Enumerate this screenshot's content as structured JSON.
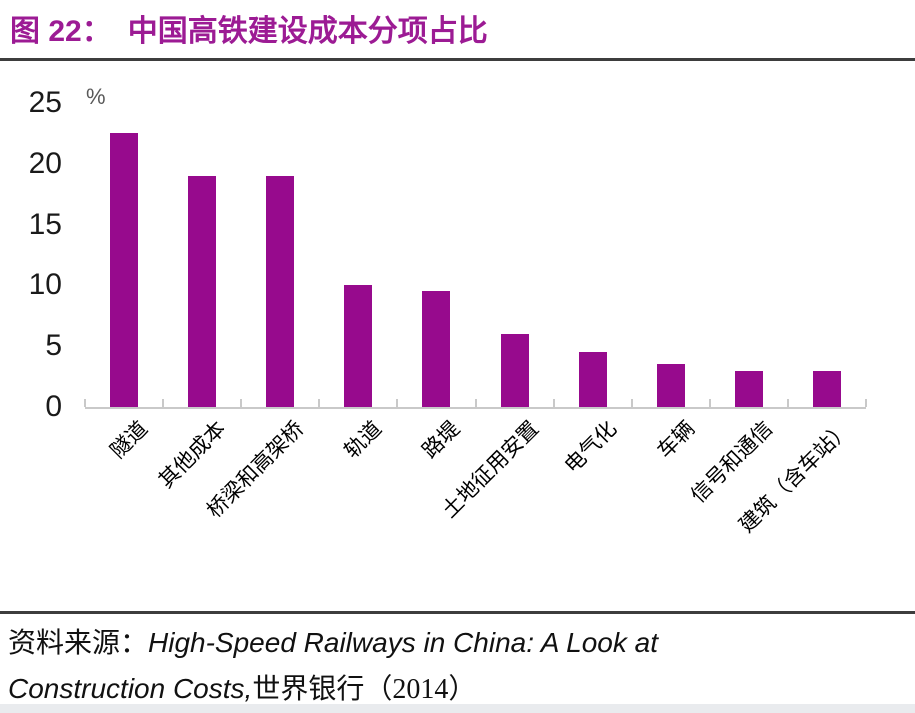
{
  "figure": {
    "label": "图 22：",
    "title": "中国高铁建设成本分项占比"
  },
  "chart_data": {
    "type": "bar",
    "title": "中国高铁建设成本分项占比",
    "figure_label": "图 22",
    "categories": [
      "隧道",
      "其他成本",
      "桥梁和高架桥",
      "轨道",
      "路堤",
      "土地征用安置",
      "电气化",
      "车辆",
      "信号和通信",
      "建筑（含车站）"
    ],
    "values": [
      22.5,
      19,
      19,
      10,
      9.5,
      6,
      4.5,
      3.5,
      3,
      3
    ],
    "xlabel": "",
    "ylabel": "%",
    "ylim": [
      0,
      25
    ],
    "yticks": [
      25,
      20,
      15,
      10,
      5,
      0
    ],
    "grid": false,
    "legend": "none",
    "bar_color": "#970A8D",
    "x_label_rotation_deg": 45
  },
  "source": {
    "prefix": "资料来源：",
    "work_title": "High-Speed Railways in China: A Look at Construction Costs,",
    "publisher": "世界银行（2014）"
  },
  "colors": {
    "accent_title": "#9C1B94",
    "bar": "#970A8D",
    "axis": "#C9C9C9",
    "rule": "#3D3D3D",
    "unit_label": "#595959"
  }
}
